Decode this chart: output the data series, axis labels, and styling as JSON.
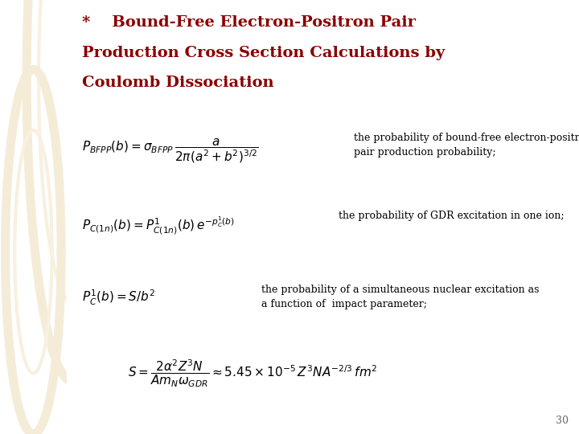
{
  "title_line1": "*    Bound-Free Electron-Positron Pair",
  "title_line2": "Production Cross Section Calculations by",
  "title_line3": "Coulomb Dissociation",
  "title_color": "#8B0000",
  "title_fontsize": 14,
  "bg_color": "#FFFFFF",
  "left_bg_color": "#E8D8B8",
  "left_circle1_color": "#F0E4CC",
  "left_circle2_inner": "#E8D8B8",
  "eq1_latex": "$P_{BFPP}(b) = \\sigma_{BFPP}\\,\\dfrac{a}{2\\pi(a^2+b^2)^{3/2}}$",
  "eq1_desc": "the probability of bound-free electron-positron\npair production probability;",
  "eq2_latex": "$P_{C(1n)}(b) = P^1_{C(1n)}(b)\\,e^{-p^1_C(b)}$",
  "eq2_desc": "the probability of GDR excitation in one ion;",
  "eq3_latex": "$P^1_C(b) = S/b^2$",
  "eq3_desc": "the probability of a simultaneous nuclear excitation as\na function of  impact parameter;",
  "eq4_latex": "$S = \\dfrac{2\\alpha^2 Z^3 N}{Am_N\\omega_{GDR}} \\approx 5.45\\times10^{-5}\\,Z^3NA^{-2/3}\\,fm^2$",
  "page_number": "30",
  "text_color": "#000000",
  "eq_fontsize": 11,
  "desc_fontsize": 9
}
